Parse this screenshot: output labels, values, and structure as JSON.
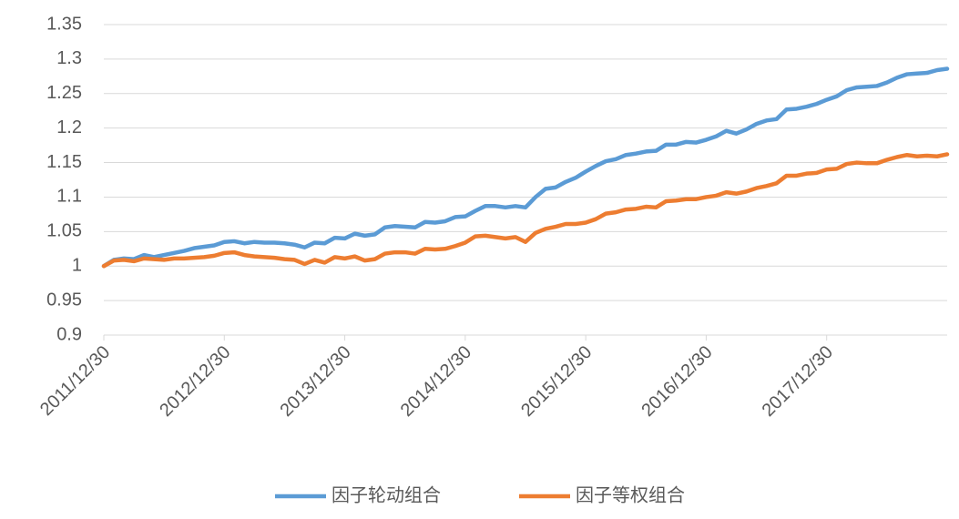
{
  "chart_data": {
    "type": "line",
    "categories": [
      "2011/12/30",
      null,
      null,
      null,
      null,
      null,
      null,
      null,
      null,
      null,
      null,
      null,
      "2012/12/30",
      null,
      null,
      null,
      null,
      null,
      null,
      null,
      null,
      null,
      null,
      null,
      "2013/12/30",
      null,
      null,
      null,
      null,
      null,
      null,
      null,
      null,
      null,
      null,
      null,
      "2014/12/30",
      null,
      null,
      null,
      null,
      null,
      null,
      null,
      null,
      null,
      null,
      null,
      "2015/12/30",
      null,
      null,
      null,
      null,
      null,
      null,
      null,
      null,
      null,
      null,
      null,
      "2016/12/30",
      null,
      null,
      null,
      null,
      null,
      null,
      null,
      null,
      null,
      null,
      null,
      "2017/12/30",
      null,
      null,
      null,
      null,
      null,
      null,
      null,
      null,
      null,
      null,
      null,
      null
    ],
    "series": [
      {
        "name": "因子轮动组合",
        "color": "#5b9bd5",
        "values": [
          1.0,
          1.009,
          1.011,
          1.01,
          1.016,
          1.013,
          1.016,
          1.019,
          1.022,
          1.026,
          1.028,
          1.03,
          1.035,
          1.036,
          1.033,
          1.035,
          1.034,
          1.034,
          1.033,
          1.031,
          1.027,
          1.034,
          1.033,
          1.041,
          1.04,
          1.047,
          1.044,
          1.046,
          1.056,
          1.058,
          1.057,
          1.056,
          1.064,
          1.063,
          1.065,
          1.071,
          1.072,
          1.08,
          1.087,
          1.087,
          1.085,
          1.087,
          1.085,
          1.1,
          1.112,
          1.114,
          1.122,
          1.128,
          1.137,
          1.145,
          1.152,
          1.155,
          1.161,
          1.163,
          1.166,
          1.167,
          1.176,
          1.176,
          1.18,
          1.179,
          1.183,
          1.188,
          1.196,
          1.192,
          1.198,
          1.206,
          1.211,
          1.213,
          1.227,
          1.228,
          1.231,
          1.235,
          1.241,
          1.246,
          1.255,
          1.259,
          1.26,
          1.261,
          1.266,
          1.273,
          1.278,
          1.279,
          1.28,
          1.284,
          1.286
        ]
      },
      {
        "name": "因子等权组合",
        "color": "#ed7d31",
        "values": [
          1.0,
          1.008,
          1.009,
          1.007,
          1.011,
          1.01,
          1.009,
          1.011,
          1.011,
          1.012,
          1.013,
          1.015,
          1.019,
          1.02,
          1.016,
          1.014,
          1.013,
          1.012,
          1.01,
          1.009,
          1.003,
          1.009,
          1.005,
          1.013,
          1.011,
          1.014,
          1.008,
          1.01,
          1.018,
          1.02,
          1.02,
          1.018,
          1.025,
          1.024,
          1.025,
          1.029,
          1.034,
          1.043,
          1.044,
          1.042,
          1.04,
          1.042,
          1.035,
          1.048,
          1.054,
          1.057,
          1.061,
          1.061,
          1.063,
          1.068,
          1.076,
          1.078,
          1.082,
          1.083,
          1.086,
          1.085,
          1.094,
          1.095,
          1.097,
          1.097,
          1.1,
          1.102,
          1.107,
          1.105,
          1.108,
          1.113,
          1.116,
          1.12,
          1.131,
          1.131,
          1.134,
          1.135,
          1.14,
          1.141,
          1.148,
          1.15,
          1.149,
          1.149,
          1.154,
          1.158,
          1.161,
          1.159,
          1.16,
          1.159,
          1.162
        ]
      }
    ],
    "ylim": [
      0.9,
      1.35
    ],
    "yticks": [
      0.9,
      0.95,
      1,
      1.05,
      1.1,
      1.15,
      1.2,
      1.25,
      1.3,
      1.35
    ],
    "grid": true,
    "legend": "bottom"
  }
}
